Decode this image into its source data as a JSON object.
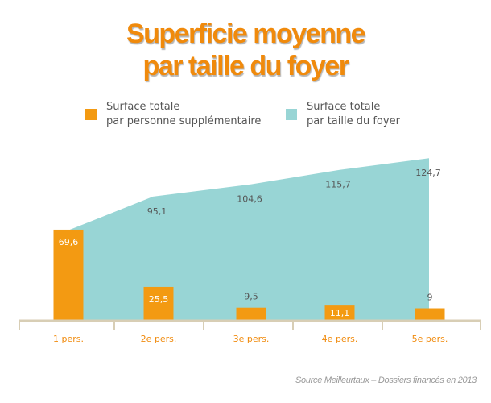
{
  "title": {
    "line1": "Superficie moyenne",
    "line2": "par taille du foyer"
  },
  "legend": [
    {
      "line1": "Surface totale",
      "line2": "par personne supplémentaire",
      "color": "#f39a12"
    },
    {
      "line1": "Surface totale",
      "line2": "par taille du foyer",
      "color": "#98d5d5"
    }
  ],
  "source": "Source Meilleurtaux – Dossiers financés en 2013",
  "chart_data": {
    "type": "bar+area",
    "categories": [
      "1 pers.",
      "2e pers.",
      "3e pers.",
      "4e pers.",
      "5e pers."
    ],
    "series": [
      {
        "name": "Surface totale par personne supplémentaire",
        "type": "bar",
        "color": "#f39a12",
        "values": [
          69.6,
          25.5,
          9.5,
          11.1,
          9
        ],
        "labels": [
          "69,6",
          "25,5",
          "9,5",
          "11,1",
          "9"
        ]
      },
      {
        "name": "Surface totale par taille du foyer",
        "type": "area",
        "color": "#98d5d5",
        "values": [
          69.6,
          95.1,
          104.6,
          115.7,
          124.7
        ],
        "labels": [
          "",
          "95,1",
          "104,6",
          "115,7",
          "124,7"
        ]
      }
    ],
    "axis_color": "#d8ceb5",
    "tick_label_color": "#f08a0c",
    "grid": false
  }
}
